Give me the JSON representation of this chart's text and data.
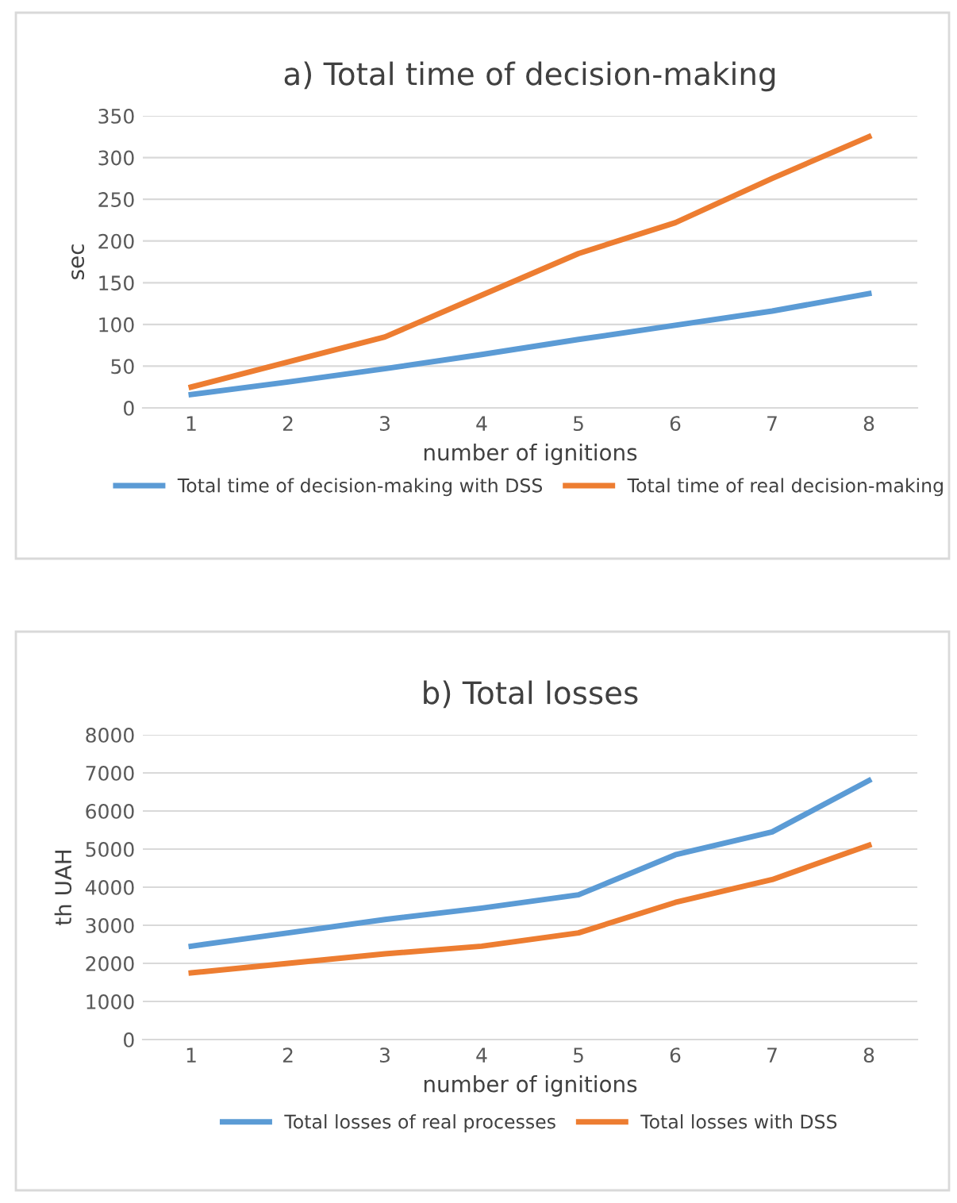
{
  "chart_data": [
    {
      "type": "line",
      "title": "a) Total time of decision-making",
      "xlabel": "number of ignitions",
      "ylabel": "sec",
      "categories": [
        "1",
        "2",
        "3",
        "4",
        "5",
        "6",
        "7",
        "8"
      ],
      "ylim": [
        0,
        350
      ],
      "yticks": [
        0,
        50,
        100,
        150,
        200,
        250,
        300,
        350
      ],
      "grid": "y",
      "legend": "bottom",
      "marker": "none",
      "line_style": "solid",
      "series": [
        {
          "name": "Total time of decision-making with DSS",
          "color": "#5b9bd5",
          "values": [
            16,
            31,
            47,
            64,
            82,
            99,
            116,
            137
          ]
        },
        {
          "name": "Total time of real decision-making",
          "color": "#ed7d31",
          "values": [
            25,
            55,
            85,
            135,
            185,
            222,
            275,
            325
          ]
        }
      ]
    },
    {
      "type": "line",
      "title": "b) Total losses",
      "xlabel": "number of ignitions",
      "ylabel": "th UAH",
      "categories": [
        "1",
        "2",
        "3",
        "4",
        "5",
        "6",
        "7",
        "8"
      ],
      "ylim": [
        0,
        8000
      ],
      "yticks": [
        0,
        1000,
        2000,
        3000,
        4000,
        5000,
        6000,
        7000,
        8000
      ],
      "grid": "y",
      "legend": "bottom",
      "marker": "none",
      "line_style": "solid",
      "series": [
        {
          "name": "Total losses of real processes",
          "color": "#5b9bd5",
          "values": [
            2450,
            2800,
            3150,
            3450,
            3800,
            4850,
            5450,
            6800
          ]
        },
        {
          "name": "Total losses with DSS",
          "color": "#ed7d31",
          "values": [
            1750,
            2000,
            2250,
            2450,
            2800,
            3600,
            4200,
            5100
          ]
        }
      ]
    }
  ]
}
